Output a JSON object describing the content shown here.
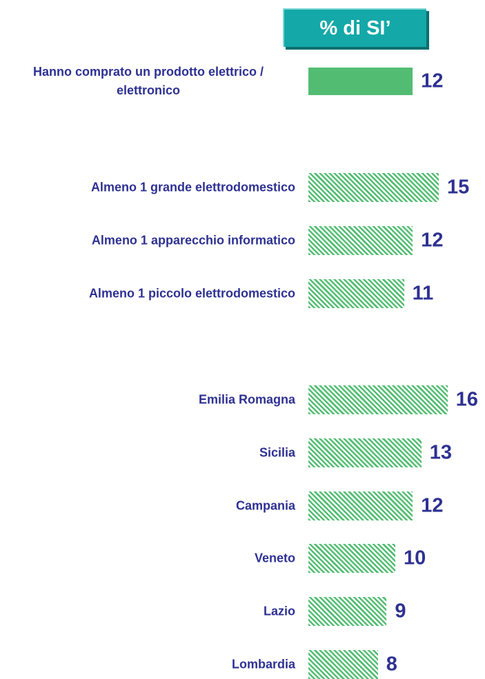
{
  "chart_data": {
    "type": "bar",
    "title": "% di SI’",
    "categories": [
      "Hanno comprato un prodotto elettrico / elettronico",
      "Almeno 1 grande elettrodomestico",
      "Almeno 1 apparecchio informatico",
      "Almeno 1 piccolo elettrodomestico",
      "Emilia Romagna",
      "Sicilia",
      "Campania",
      "Veneto",
      "Lazio",
      "Lombardia"
    ],
    "values": [
      12,
      15,
      12,
      11,
      16,
      13,
      12,
      10,
      9,
      8
    ],
    "color": "#52bd72",
    "pattern": [
      "solid",
      "hatched",
      "hatched",
      "hatched",
      "hatched",
      "hatched",
      "hatched",
      "hatched",
      "hatched",
      "hatched"
    ]
  }
}
